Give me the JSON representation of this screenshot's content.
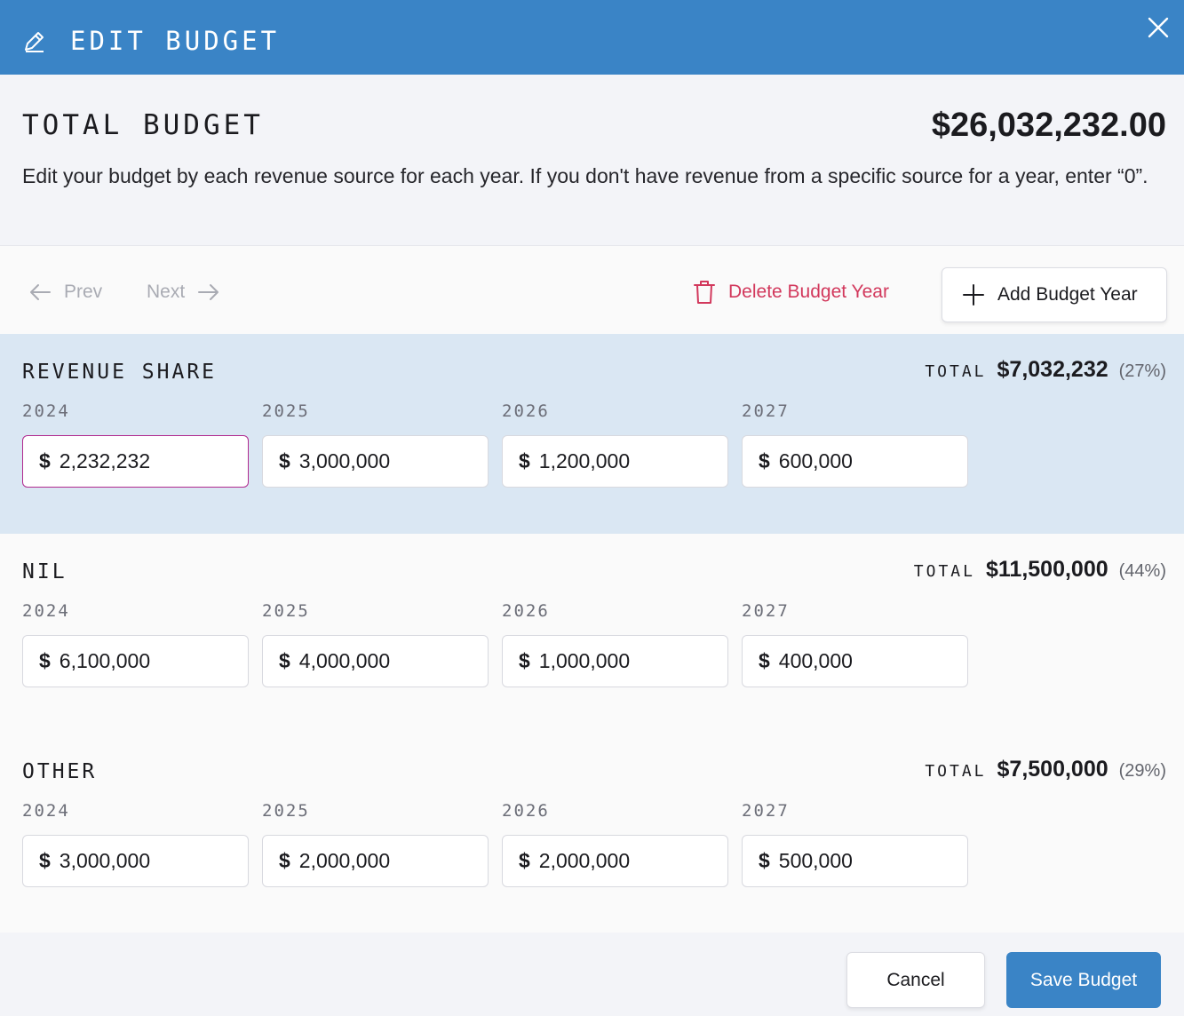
{
  "header": {
    "title": "EDIT BUDGET",
    "icon": "pencil-icon",
    "close_icon": "close-icon",
    "background": "#3a84c6"
  },
  "summary": {
    "total_label": "TOTAL BUDGET",
    "total_value": "$26,032,232.00",
    "description": "Edit your budget by each revenue source for each year. If you don't have revenue from a specific source for a year, enter “0”."
  },
  "toolbar": {
    "prev_label": "Prev",
    "next_label": "Next",
    "delete_label": "Delete Budget Year",
    "add_label": "Add Budget Year"
  },
  "sections": [
    {
      "title": "REVENUE SHARE",
      "total_label": "TOTAL",
      "total_value": "$7,032,232",
      "total_pct": "(27%)",
      "years": [
        "2024",
        "2025",
        "2026",
        "2027"
      ],
      "currency": "$",
      "values": [
        "2,232,232",
        "3,000,000",
        "1,200,000",
        "600,000"
      ],
      "highlight_color": "#dae7f3"
    },
    {
      "title": "NIL",
      "total_label": "TOTAL",
      "total_value": "$11,500,000",
      "total_pct": "(44%)",
      "years": [
        "2024",
        "2025",
        "2026",
        "2027"
      ],
      "currency": "$",
      "values": [
        "6,100,000",
        "4,000,000",
        "1,000,000",
        "400,000"
      ]
    },
    {
      "title": "OTHER",
      "total_label": "TOTAL",
      "total_value": "$7,500,000",
      "total_pct": "(29%)",
      "years": [
        "2024",
        "2025",
        "2026",
        "2027"
      ],
      "currency": "$",
      "values": [
        "3,000,000",
        "2,000,000",
        "2,000,000",
        "500,000"
      ]
    }
  ],
  "footer": {
    "cancel_label": "Cancel",
    "save_label": "Save Budget"
  },
  "colors": {
    "accent": "#3a84c6",
    "danger": "#d2385c",
    "focus": "#b02a8f"
  }
}
